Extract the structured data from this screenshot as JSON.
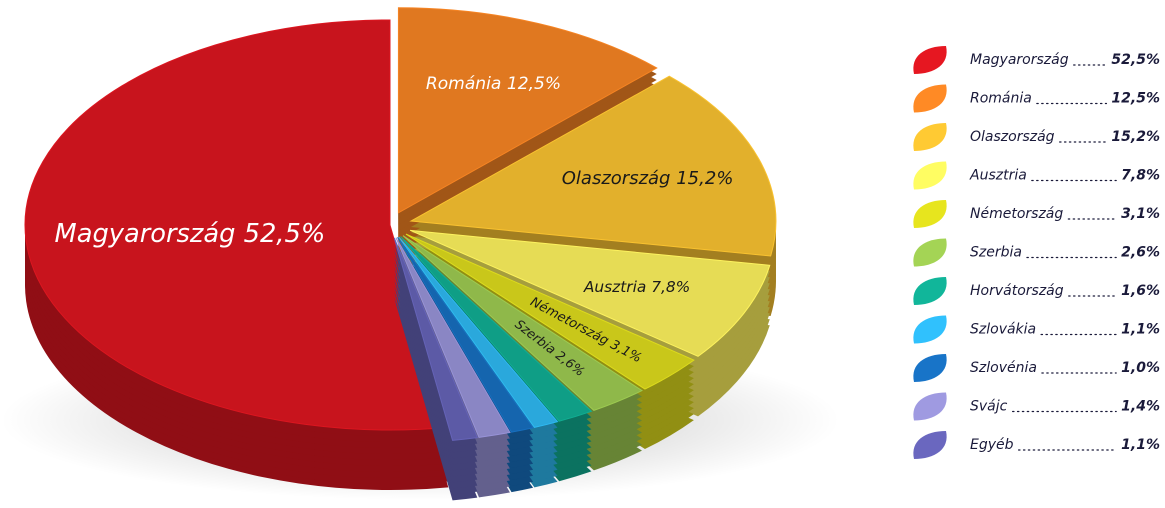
{
  "chart_data": {
    "type": "pie",
    "categories": [
      "Magyarország",
      "Románia",
      "Olaszország",
      "Ausztria",
      "Németország",
      "Szerbia",
      "Horvátország",
      "Szlovákia",
      "Szlovénia",
      "Svájc",
      "Egyéb"
    ],
    "values": [
      52.5,
      12.5,
      15.2,
      7.8,
      3.1,
      2.6,
      1.6,
      1.1,
      1.0,
      1.4,
      1.1
    ],
    "value_labels": [
      "52,5%",
      "12,5%",
      "15,2%",
      "7,8%",
      "3,1%",
      "2,6%",
      "1,6%",
      "1,1%",
      "1,0%",
      "1,4%",
      "1,1%"
    ],
    "colors": [
      "#c8141d",
      "#e07820",
      "#e2b02c",
      "#e6dc55",
      "#c9c71a",
      "#8fb84a",
      "#0f9e86",
      "#2aa8dc",
      "#1565ae",
      "#8a86c4",
      "#5c5aa6"
    ],
    "legend": "right"
  }
}
